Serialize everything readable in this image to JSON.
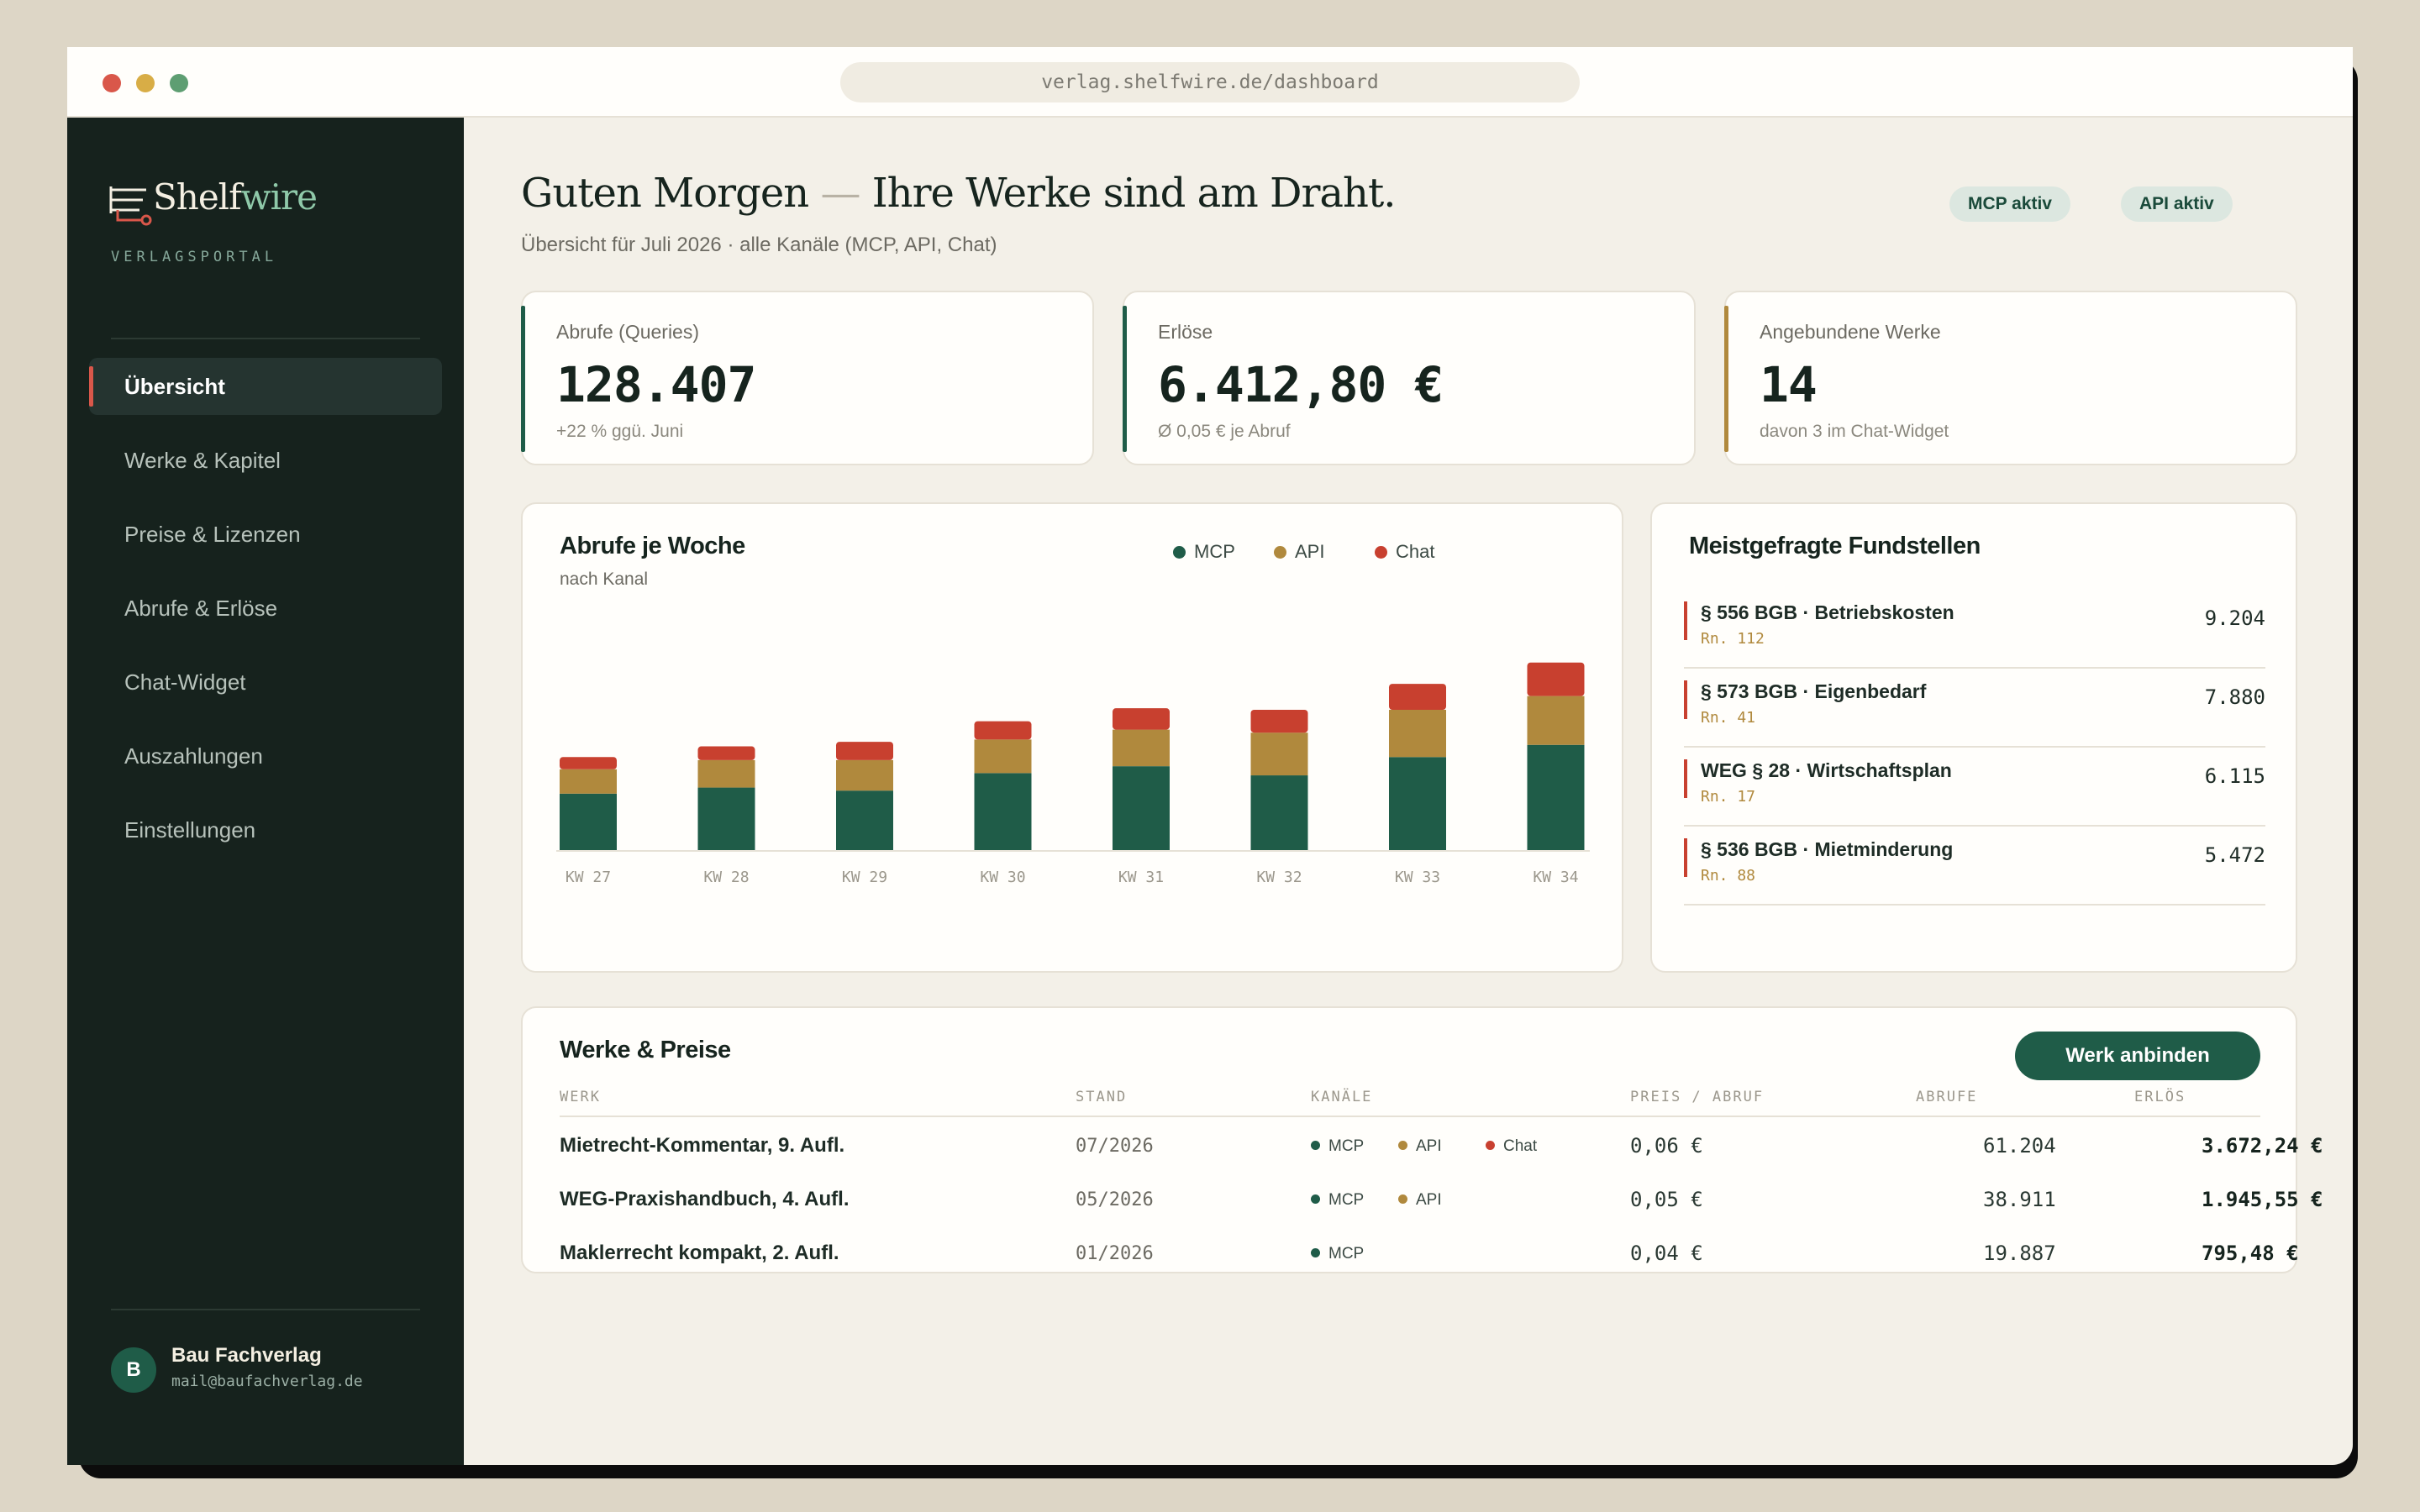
{
  "browser": {
    "url": "verlag.shelfwire.de/dashboard"
  },
  "brand": {
    "name_main": "Shelf",
    "name_accent": "wire",
    "subtitle": "VERLAGSPORTAL"
  },
  "nav": [
    {
      "label": "Übersicht",
      "active": true
    },
    {
      "label": "Werke & Kapitel"
    },
    {
      "label": "Preise & Lizenzen"
    },
    {
      "label": "Abrufe & Erlöse"
    },
    {
      "label": "Chat-Widget"
    },
    {
      "label": "Auszahlungen"
    },
    {
      "label": "Einstellungen"
    }
  ],
  "user": {
    "initial": "B",
    "name": "Bau Fachverlag",
    "email": "mail@baufachverlag.de"
  },
  "header": {
    "title_main": "Guten Morgen",
    "title_dash": "—",
    "title_rest": "Ihre Werke sind am Draht.",
    "subtitle": "Übersicht für Juli 2026 · alle Kanäle (MCP, API, Chat)",
    "badges": [
      "MCP aktiv",
      "API aktiv"
    ]
  },
  "kpis": [
    {
      "label": "Abrufe (Queries)",
      "value": "128.407",
      "note": "+22 % ggü. Juni"
    },
    {
      "label": "Erlöse",
      "value": "6.412,80 €",
      "note": "Ø 0,05 € je Abruf"
    },
    {
      "label": "Angebundene Werke",
      "value": "14",
      "note": "davon 3 im Chat-Widget"
    }
  ],
  "colors": {
    "mcp": "#1f5c48",
    "api": "#b0893d",
    "chat": "#c8402f"
  },
  "chart_card": {
    "title": "Abrufe je Woche",
    "subtitle": "nach Kanal"
  },
  "chart_data": {
    "type": "bar",
    "stacked": true,
    "title": "Abrufe je Woche",
    "subtitle": "nach Kanal",
    "categories": [
      "KW 27",
      "KW 28",
      "KW 29",
      "KW 30",
      "KW 31",
      "KW 32",
      "KW 33",
      "KW 34"
    ],
    "series": [
      {
        "name": "MCP",
        "color": "#1f5c48",
        "values": [
          74,
          82,
          78,
          101,
          110,
          98,
          122,
          138
        ]
      },
      {
        "name": "API",
        "color": "#b0893d",
        "values": [
          32,
          36,
          40,
          44,
          48,
          56,
          62,
          64
        ]
      },
      {
        "name": "Chat",
        "color": "#c8402f",
        "values": [
          16,
          18,
          24,
          24,
          28,
          30,
          34,
          44
        ]
      }
    ],
    "legend": "top-right",
    "grid": false,
    "ylim": [
      0,
      260
    ]
  },
  "fundstellen": {
    "title": "Meistgefragte Fundstellen",
    "items": [
      {
        "name": "§ 556 BGB · Betriebskosten",
        "rn": "Rn. 112",
        "value": "9.204"
      },
      {
        "name": "§ 573 BGB · Eigenbedarf",
        "rn": "Rn. 41",
        "value": "7.880"
      },
      {
        "name": "WEG § 28 · Wirtschaftsplan",
        "rn": "Rn. 17",
        "value": "6.115"
      },
      {
        "name": "§ 536 BGB · Mietminderung",
        "rn": "Rn. 88",
        "value": "5.472"
      }
    ]
  },
  "werke_table": {
    "title": "Werke & Preise",
    "button": "Werk anbinden",
    "headers": [
      "WERK",
      "STAND",
      "KANÄLE",
      "PREIS / ABRUF",
      "ABRUFE",
      "ERLÖS"
    ],
    "rows": [
      {
        "werk": "Mietrecht-Kommentar, 9. Aufl.",
        "stand": "07/2026",
        "kanaele": [
          "MCP",
          "API",
          "Chat"
        ],
        "preis": "0,06 €",
        "abrufe": "61.204",
        "erloes": "3.672,24 €"
      },
      {
        "werk": "WEG-Praxishandbuch, 4. Aufl.",
        "stand": "05/2026",
        "kanaele": [
          "MCP",
          "API"
        ],
        "preis": "0,05 €",
        "abrufe": "38.911",
        "erloes": "1.945,55 €"
      },
      {
        "werk": "Maklerrecht kompakt, 2. Aufl.",
        "stand": "01/2026",
        "kanaele": [
          "MCP"
        ],
        "preis": "0,04 €",
        "abrufe": "19.887",
        "erloes": "795,48 €"
      }
    ]
  }
}
